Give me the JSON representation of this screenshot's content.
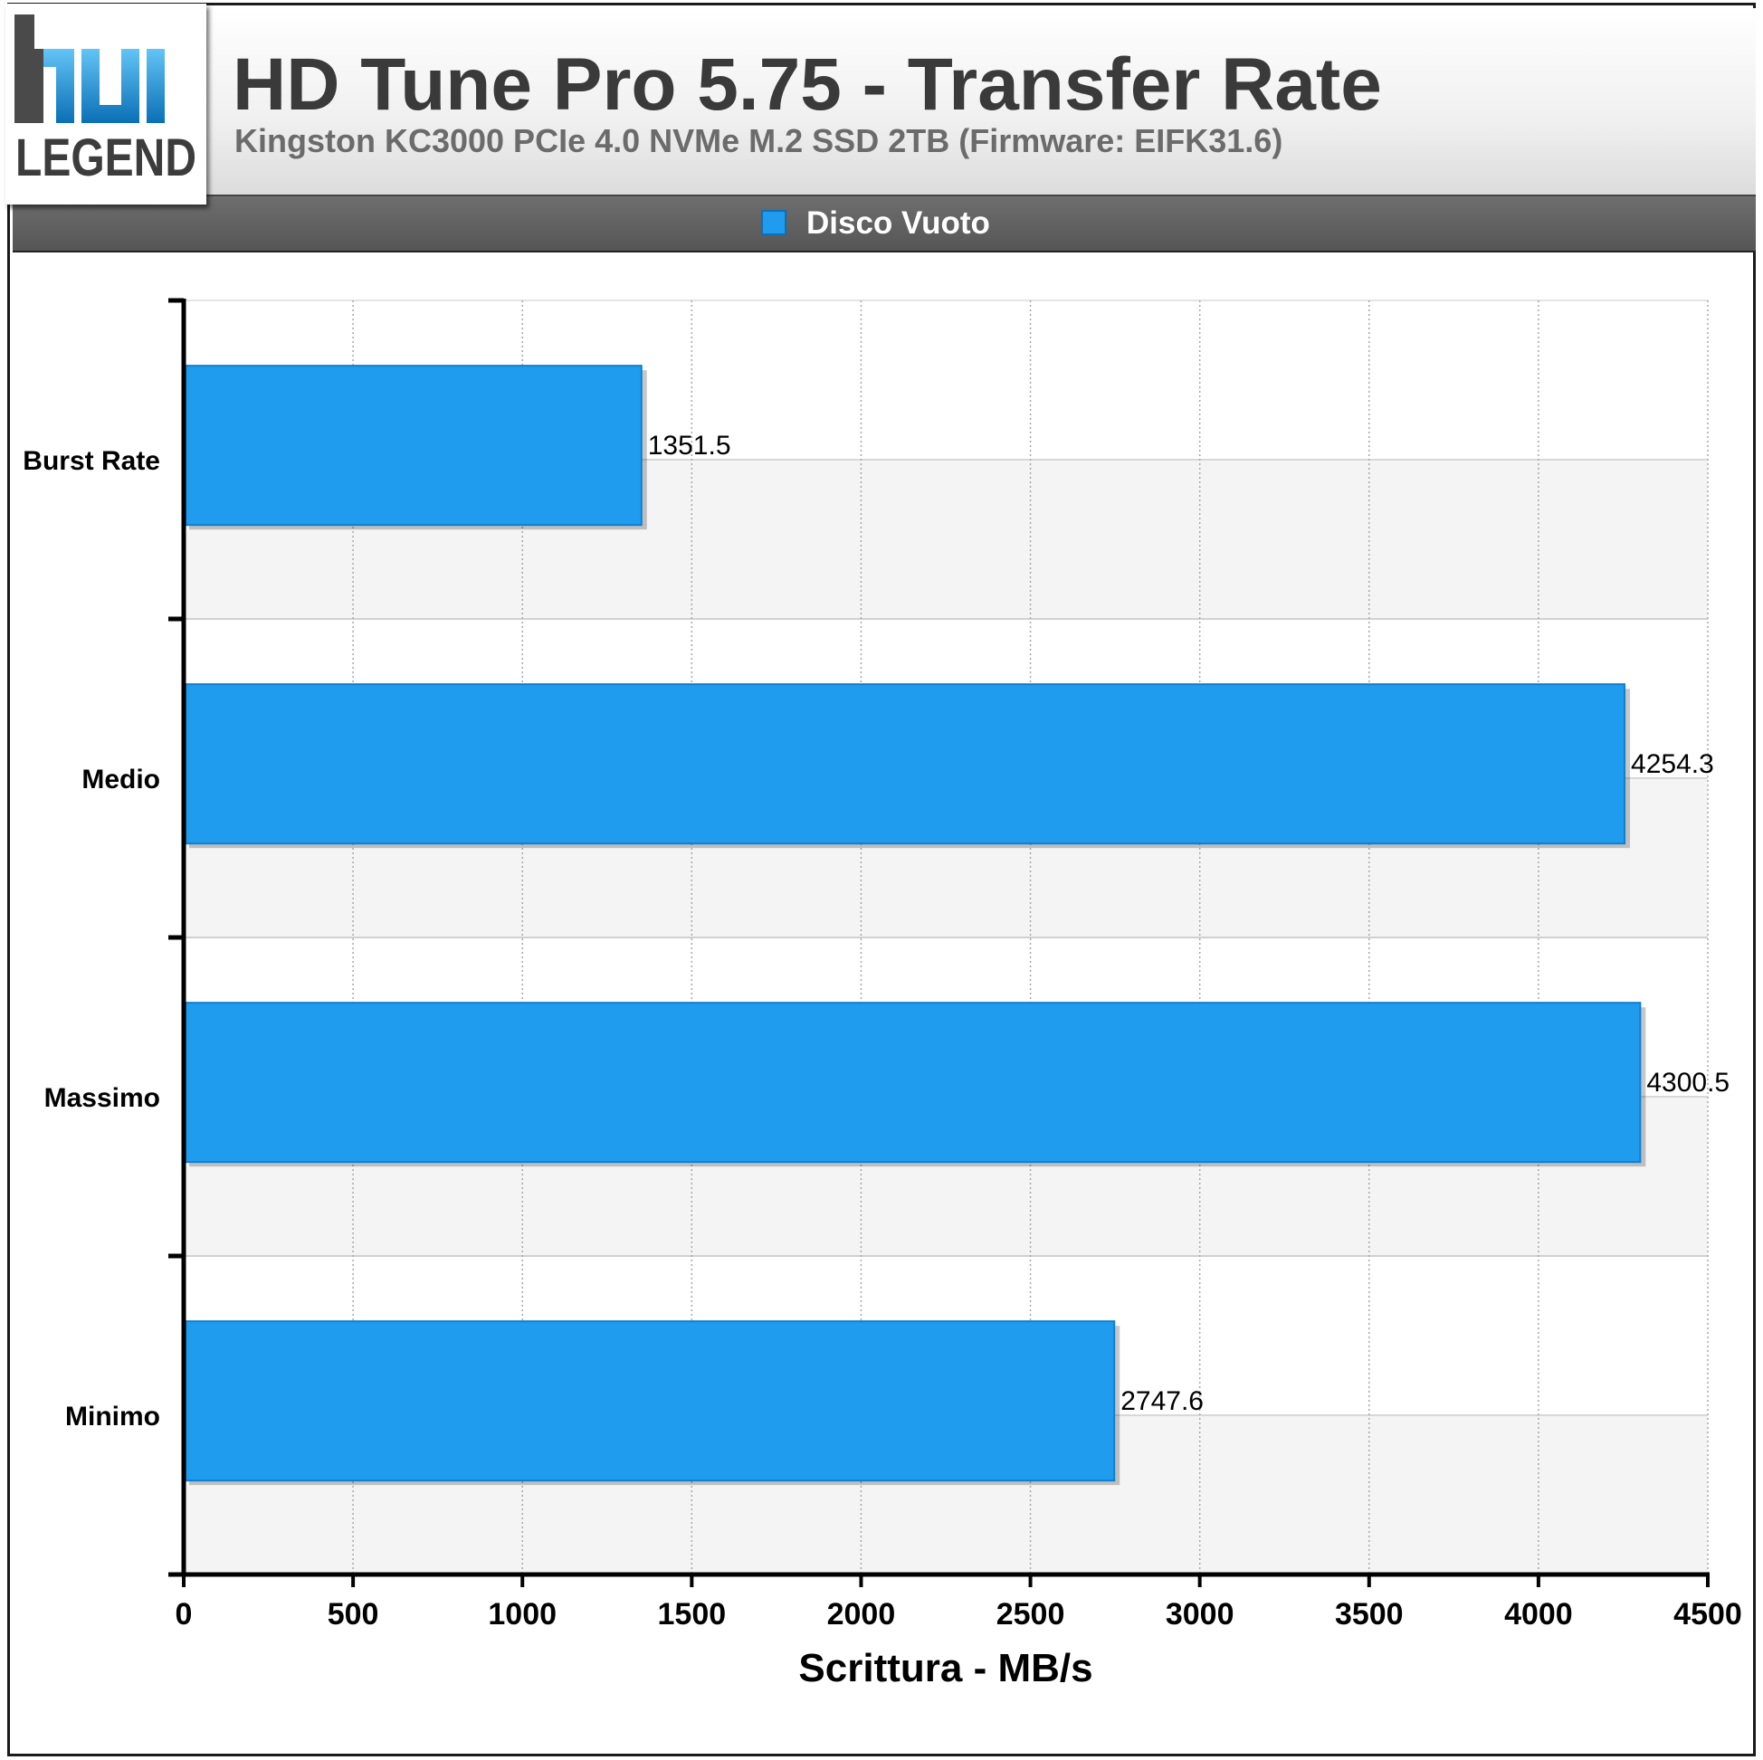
{
  "header": {
    "title": "HD Tune Pro 5.75 - Transfer Rate",
    "subtitle": "Kingston KC3000 PCIe 4.0 NVMe M.2 SSD 2TB (Firmware: EIFK31.6)",
    "logo_text_top": "hu",
    "logo_text_bottom": "LEGEND"
  },
  "legend": {
    "label": "Disco Vuoto",
    "color": "#209cee"
  },
  "chart_data": {
    "type": "bar",
    "orientation": "horizontal",
    "title": "HD Tune Pro 5.75 - Transfer Rate",
    "subtitle": "Kingston KC3000 PCIe 4.0 NVMe M.2 SSD 2TB (Firmware: EIFK31.6)",
    "categories": [
      "Burst Rate",
      "Medio",
      "Massimo",
      "Minimo"
    ],
    "series": [
      {
        "name": "Disco Vuoto",
        "values": [
          1351.5,
          4254.3,
          4300.5,
          2747.6
        ],
        "color": "#209cee"
      }
    ],
    "data_labels": [
      "1351.5",
      "4254.3",
      "4300.5",
      "2747.6"
    ],
    "xlabel": "Scrittura - MB/s",
    "ylabel": "",
    "xlim": [
      0,
      4500
    ],
    "xticks": [
      0,
      500,
      1000,
      1500,
      2000,
      2500,
      3000,
      3500,
      4000,
      4500
    ],
    "grid": true,
    "legend_position": "top-center"
  }
}
